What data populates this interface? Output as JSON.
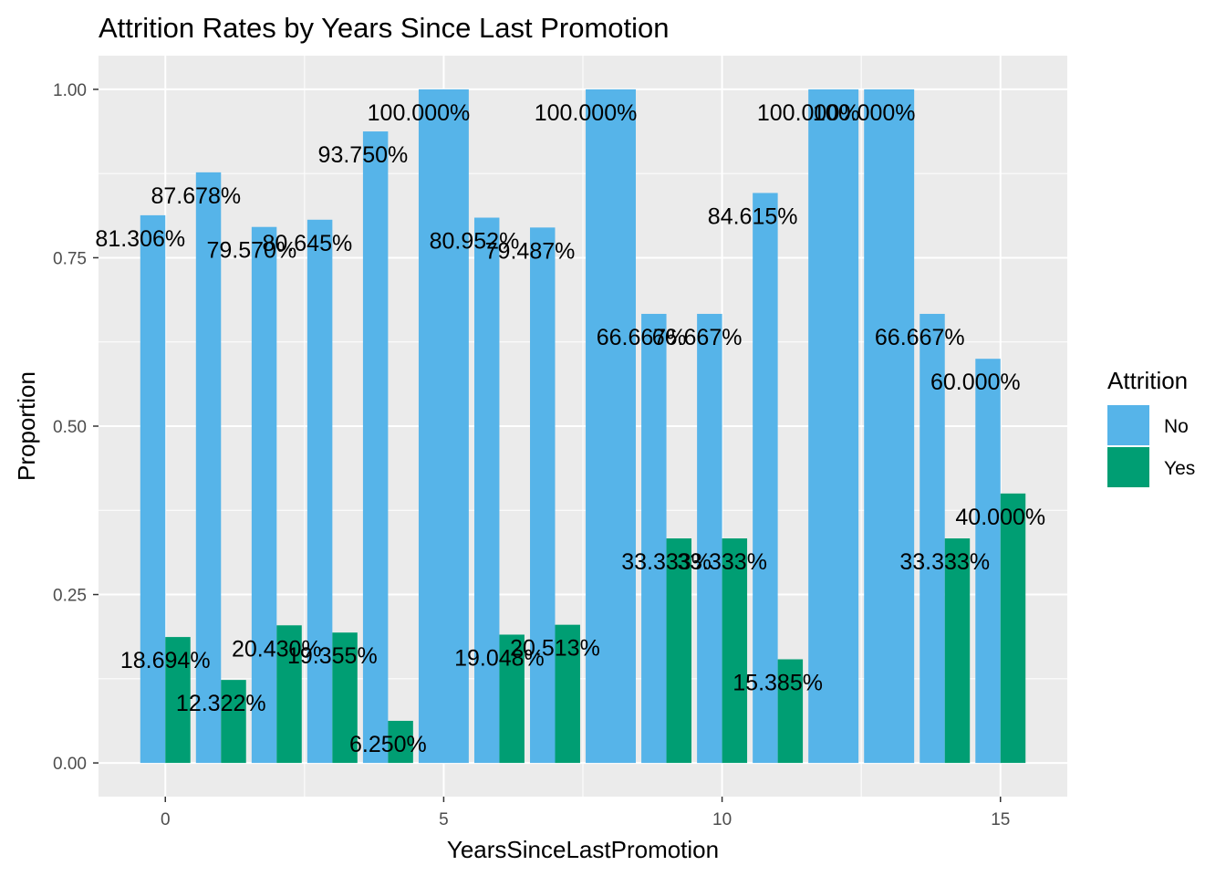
{
  "chart_data": {
    "type": "bar",
    "title": "Attrition Rates by Years Since Last Promotion",
    "xlabel": "YearsSinceLastPromotion",
    "ylabel": "Proportion",
    "xlim": [
      -1.2,
      16.2
    ],
    "ylim": [
      -0.05,
      1.05
    ],
    "x_ticks": [
      0,
      5,
      10,
      15
    ],
    "x_tick_labels": [
      "0",
      "5",
      "10",
      "15"
    ],
    "y_ticks": [
      0,
      0.25,
      0.5,
      0.75,
      1
    ],
    "y_tick_labels": [
      "0.00",
      "0.25",
      "0.50",
      "0.75",
      "1.00"
    ],
    "grid": true,
    "legend": {
      "title": "Attrition",
      "position": "right",
      "entries": [
        {
          "name": "No",
          "color": "#56B4E9"
        },
        {
          "name": "Yes",
          "color": "#009E73"
        }
      ]
    },
    "series": [
      {
        "name": "No",
        "color": "#56B4E9",
        "x": [
          0,
          1,
          2,
          3,
          4,
          5,
          6,
          7,
          8,
          9,
          10,
          11,
          12,
          13,
          14,
          15
        ],
        "values": [
          0.81306,
          0.87678,
          0.7957,
          0.80645,
          0.9375,
          1.0,
          0.80952,
          0.79487,
          1.0,
          0.66667,
          0.66667,
          0.84615,
          1.0,
          1.0,
          0.66667,
          0.6
        ],
        "labels": [
          "81.306%",
          "87.678%",
          "79.570%",
          "80.645%",
          "93.750%",
          "100.000%",
          "80.952%",
          "79.487%",
          "100.000%",
          "66.667%",
          "66.667%",
          "84.615%",
          "100.000%",
          "100.000%",
          "66.667%",
          "60.000%"
        ]
      },
      {
        "name": "Yes",
        "color": "#009E73",
        "x": [
          0,
          1,
          2,
          3,
          4,
          6,
          7,
          9,
          10,
          11,
          14,
          15
        ],
        "values": [
          0.18694,
          0.12322,
          0.2043,
          0.19355,
          0.0625,
          0.19048,
          0.20513,
          0.33333,
          0.33333,
          0.15385,
          0.33333,
          0.4
        ],
        "labels": [
          "18.694%",
          "12.322%",
          "20.430%",
          "19.355%",
          "6.250%",
          "19.048%",
          "20.513%",
          "33.333%",
          "33.333%",
          "15.385%",
          "33.333%",
          "40.000%"
        ]
      }
    ]
  }
}
